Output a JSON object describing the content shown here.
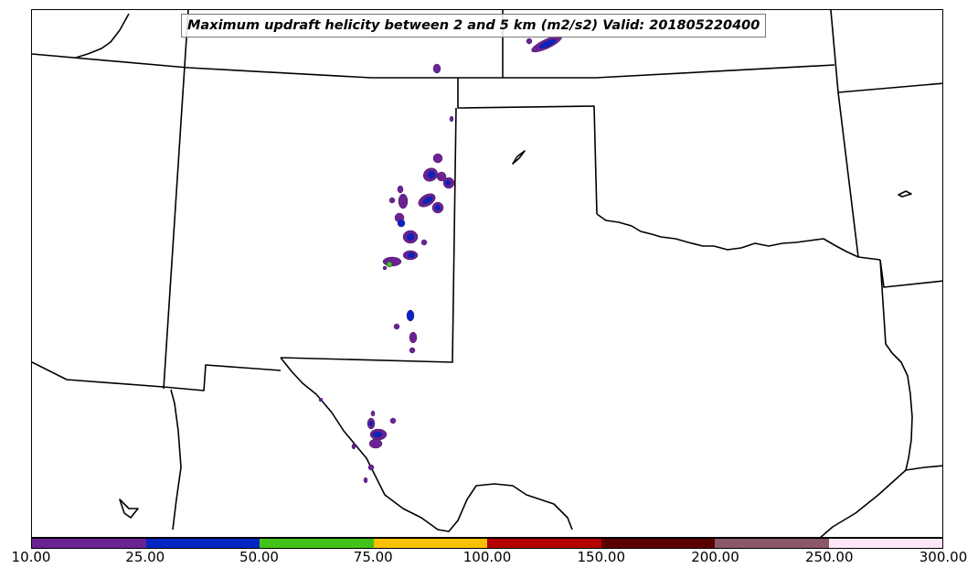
{
  "title": "Maximum updraft helicity between 2 and 5 km (m2/s2) Valid: 201805220400",
  "colorbar": {
    "colors": [
      "#6a2393",
      "#0525c3",
      "#43c31a",
      "#f8c000",
      "#b50000",
      "#5a0000",
      "#8a5868",
      "#fde6f8"
    ],
    "ticks": [
      "10.00",
      "25.00",
      "50.00",
      "75.00",
      "100.00",
      "150.00",
      "200.00",
      "250.00",
      "300.00"
    ]
  },
  "map": {
    "border_color": "#000000",
    "cell_colors": {
      "purple": "#6a2393",
      "blue": "#0525c3",
      "green": "#43c31a"
    }
  }
}
